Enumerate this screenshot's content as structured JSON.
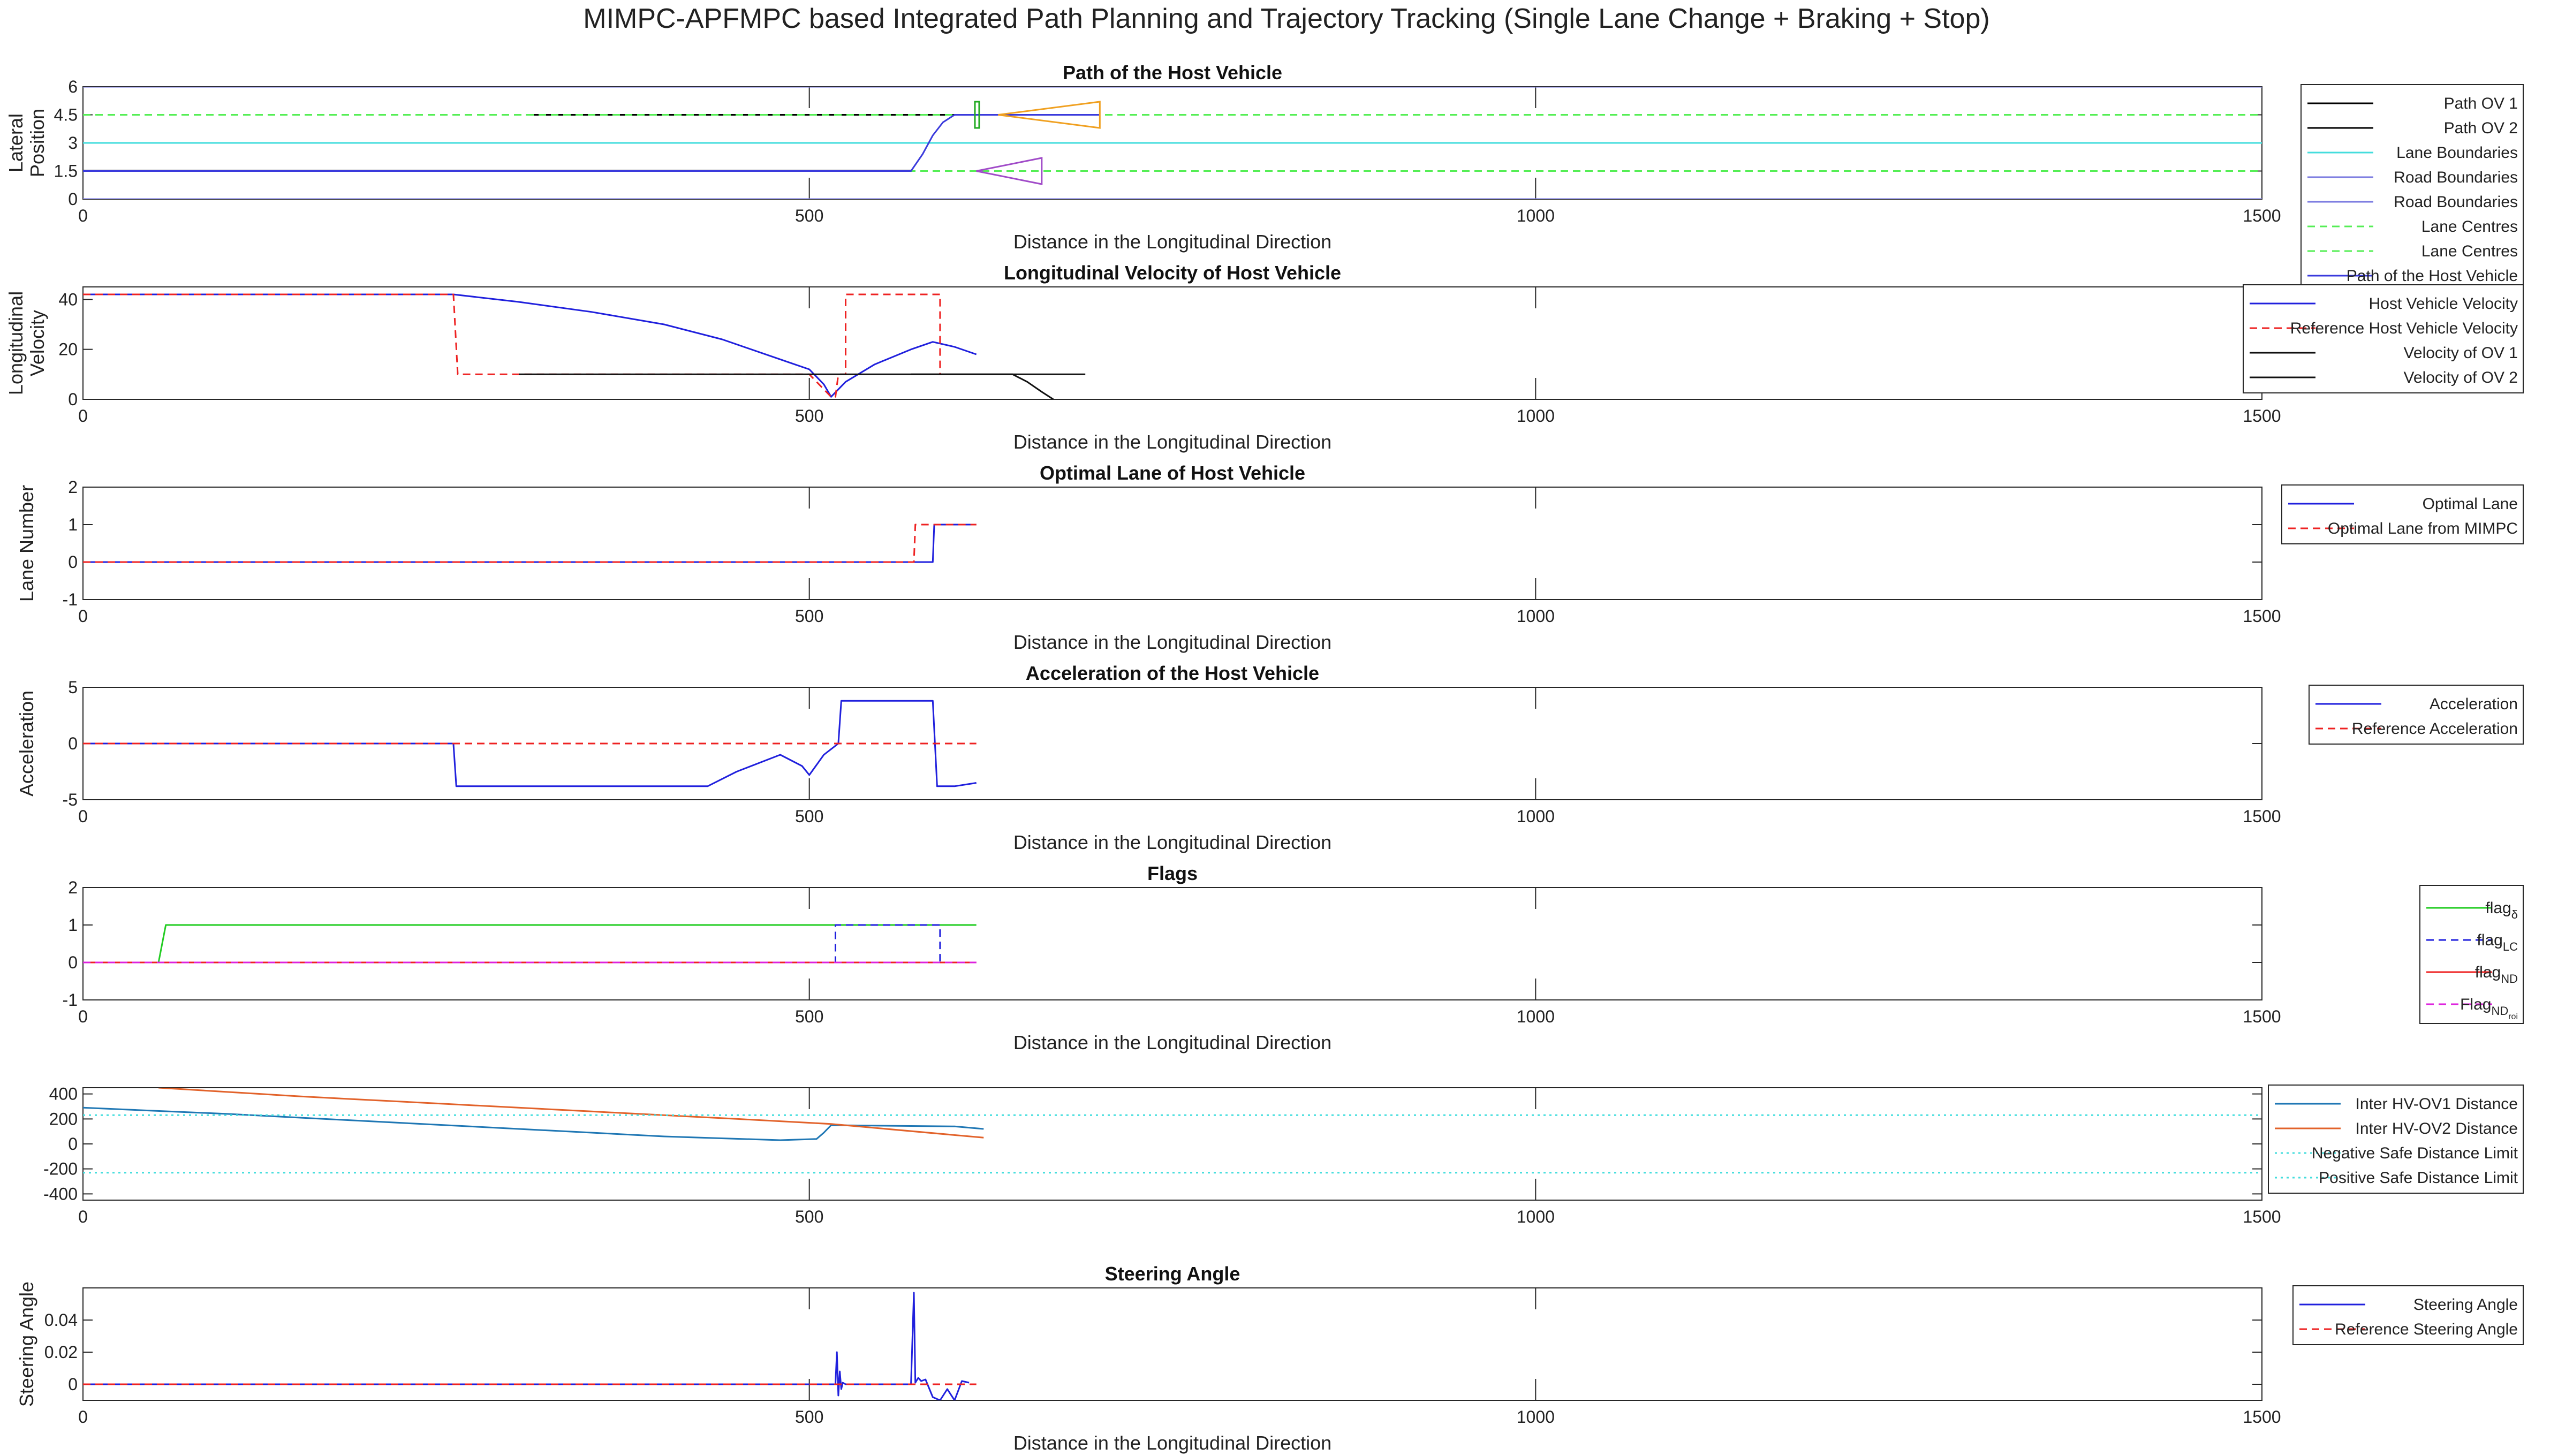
{
  "figure_title": "MIMPC-APFMPC based Integrated Path Planning and Trajectory Tracking (Single Lane Change + Braking + Stop)",
  "chart_data": [
    {
      "type": "line",
      "title": "Path of the Host Vehicle",
      "xlabel": "Distance in the Longitudinal Direction",
      "ylabel": [
        "Lateral",
        "Position"
      ],
      "xlim": [
        0,
        1500
      ],
      "ylim": [
        0,
        6
      ],
      "xticks": [
        "0",
        "500",
        "1000",
        "1500"
      ],
      "yticks": [
        "0",
        "1.5",
        "3",
        "4.5",
        "6"
      ],
      "legend_position": "right",
      "series": [
        {
          "name": "Path OV 1",
          "color": "#000000",
          "style": "solid",
          "x": [
            608,
            624
          ],
          "y": [
            4.5,
            4.5
          ]
        },
        {
          "name": "Path OV 2",
          "color": "#000000",
          "style": "solid",
          "x": [
            305,
            700
          ],
          "y": [
            4.5,
            4.5
          ]
        },
        {
          "name": "Lane Boundaries",
          "color": "#44dddd",
          "style": "solid",
          "x": [
            0,
            1500
          ],
          "y": [
            3,
            3
          ]
        },
        {
          "name": "Road Boundaries",
          "color": "#7a7ae0",
          "style": "solid",
          "x": [
            0,
            1500
          ],
          "y": [
            0,
            0
          ]
        },
        {
          "name": "Road Boundaries",
          "color": "#7a7ae0",
          "style": "solid",
          "x": [
            0,
            1500
          ],
          "y": [
            6,
            6
          ]
        },
        {
          "name": "Lane Centres",
          "color": "#55ee55",
          "style": "dashed",
          "x": [
            0,
            1500
          ],
          "y": [
            1.5,
            1.5
          ]
        },
        {
          "name": "Lane Centres",
          "color": "#55ee55",
          "style": "dashed",
          "x": [
            0,
            1500
          ],
          "y": [
            4.5,
            4.5
          ]
        },
        {
          "name": "Path of the Host Vehicle",
          "color": "#3a3adc",
          "style": "solid",
          "x": [
            0,
            570,
            578,
            585,
            592,
            600,
            700
          ],
          "y": [
            1.5,
            1.5,
            2.4,
            3.4,
            4.1,
            4.5,
            4.5
          ]
        }
      ],
      "other_lines": [
        {
          "color": "#222222",
          "x": [
            0,
            570
          ],
          "y": [
            1.52,
            1.52
          ]
        }
      ]
    },
    {
      "type": "line",
      "title": "Longitudinal Velocity of Host Vehicle",
      "xlabel": "Distance in the Longitudinal Direction",
      "ylabel": [
        "Longitudinal",
        "Velocity"
      ],
      "xlim": [
        0,
        1500
      ],
      "ylim": [
        0,
        45
      ],
      "xticks": [
        "0",
        "500",
        "1000",
        "1500"
      ],
      "yticks": [
        "0",
        "20",
        "40"
      ],
      "legend_position": "right",
      "series": [
        {
          "name": "Host Vehicle Velocity",
          "color": "#2020dd",
          "style": "solid",
          "x": [
            0,
            255,
            300,
            350,
            400,
            440,
            475,
            490,
            500,
            510,
            515,
            525,
            545,
            570,
            585,
            600,
            615
          ],
          "y": [
            42,
            42,
            39,
            35,
            30,
            24,
            17,
            14,
            12,
            6,
            1,
            7,
            14,
            20,
            23,
            21,
            18
          ]
        },
        {
          "name": "Reference Host Vehicle Velocity",
          "color": "#ee2222",
          "style": "dashed",
          "x": [
            0,
            255,
            258,
            300,
            500,
            510,
            515,
            518,
            520,
            525,
            525,
            590,
            590
          ],
          "y": [
            42,
            42,
            10,
            10,
            10,
            4,
            1,
            1,
            10,
            10,
            42,
            42,
            10
          ]
        },
        {
          "name": "Velocity of OV 1",
          "color": "#111111",
          "style": "solid",
          "x": [
            300,
            500,
            690
          ],
          "y": [
            10,
            10,
            10
          ]
        },
        {
          "name": "Velocity of OV 2",
          "color": "#111111",
          "style": "solid",
          "x": [
            570,
            640,
            650,
            660,
            668
          ],
          "y": [
            10,
            10,
            7,
            3,
            0
          ]
        }
      ]
    },
    {
      "type": "line",
      "title": "Optimal Lane of Host Vehicle",
      "xlabel": "Distance in the Longitudinal Direction",
      "ylabel": [
        "Lane Number"
      ],
      "xlim": [
        0,
        1500
      ],
      "ylim": [
        -1,
        2
      ],
      "xticks": [
        "0",
        "500",
        "1000",
        "1500"
      ],
      "yticks": [
        "-1",
        "0",
        "1",
        "2"
      ],
      "legend_position": "right",
      "series": [
        {
          "name": "Optimal Lane",
          "color": "#2020dd",
          "style": "solid",
          "x": [
            0,
            585,
            586,
            615
          ],
          "y": [
            0,
            0,
            1,
            1
          ]
        },
        {
          "name": "Optimal Lane from MIMPC",
          "color": "#ee2222",
          "style": "dashed",
          "x": [
            0,
            572,
            573,
            615
          ],
          "y": [
            0,
            0,
            1,
            1
          ]
        }
      ]
    },
    {
      "type": "line",
      "title": "Acceleration of the Host Vehicle",
      "xlabel": "Distance in the Longitudinal Direction",
      "ylabel": [
        "Acceleration"
      ],
      "xlim": [
        0,
        1500
      ],
      "ylim": [
        -5,
        5
      ],
      "xticks": [
        "0",
        "500",
        "1000",
        "1500"
      ],
      "yticks": [
        "-5",
        "0",
        "5"
      ],
      "legend_position": "right",
      "series": [
        {
          "name": "Acceleration",
          "color": "#2020dd",
          "style": "solid",
          "x": [
            0,
            255,
            257,
            430,
            450,
            480,
            495,
            500,
            510,
            520,
            522,
            585,
            588,
            600,
            615
          ],
          "y": [
            0,
            0,
            -3.8,
            -3.8,
            -2.5,
            -1.0,
            -2.0,
            -2.8,
            -1.0,
            0,
            3.8,
            3.8,
            -3.8,
            -3.8,
            -3.5
          ]
        },
        {
          "name": "Reference Acceleration",
          "color": "#ee2222",
          "style": "dashed",
          "x": [
            0,
            615
          ],
          "y": [
            0,
            0
          ]
        }
      ]
    },
    {
      "type": "line",
      "title": "Flags",
      "xlabel": "Distance in the Longitudinal Direction",
      "ylabel": [],
      "xlim": [
        0,
        1500
      ],
      "ylim": [
        -1,
        2
      ],
      "xticks": [
        "0",
        "500",
        "1000",
        "1500"
      ],
      "yticks": [
        "-1",
        "0",
        "1",
        "2"
      ],
      "legend_position": "right",
      "series": [
        {
          "name": "flag",
          "sub": "δ",
          "color": "#22cc22",
          "style": "solid",
          "x": [
            0,
            52,
            57,
            615
          ],
          "y": [
            0,
            0,
            1,
            1
          ]
        },
        {
          "name": "flag",
          "sub": "LC",
          "color": "#2020dd",
          "style": "dashed",
          "x": [
            0,
            518,
            518,
            590,
            590,
            615
          ],
          "y": [
            0,
            0,
            1,
            1,
            0,
            0
          ]
        },
        {
          "name": "flag",
          "sub": "ND",
          "color": "#ee2222",
          "style": "solid",
          "x": [
            0,
            615
          ],
          "y": [
            0,
            0
          ]
        },
        {
          "name": "Flag",
          "sub": "ND",
          "subsub": "roi",
          "color": "#dd22dd",
          "style": "dashed",
          "x": [
            0,
            615
          ],
          "y": [
            0,
            0
          ]
        }
      ]
    },
    {
      "type": "line",
      "title": "",
      "xlabel": "",
      "ylabel": [],
      "xlim": [
        0,
        1500
      ],
      "ylim": [
        -450,
        450
      ],
      "xticks": [
        "0",
        "500",
        "1000",
        "1500"
      ],
      "yticks": [
        "-400",
        "-200",
        "0",
        "200",
        "400"
      ],
      "legend_position": "right",
      "series": [
        {
          "name": "Inter HV-OV1 Distance",
          "color": "#1f77b4",
          "style": "solid",
          "x": [
            0,
            100,
            200,
            300,
            400,
            480,
            505,
            510,
            515,
            600,
            620
          ],
          "y": [
            290,
            240,
            180,
            120,
            60,
            30,
            40,
            90,
            150,
            140,
            120
          ]
        },
        {
          "name": "Inter HV-OV2 Distance",
          "color": "#e2622a",
          "style": "solid",
          "x": [
            52,
            150,
            250,
            350,
            450,
            515,
            620
          ],
          "y": [
            450,
            380,
            320,
            260,
            200,
            160,
            50
          ]
        },
        {
          "name": "Negative Safe Distance Limit",
          "color": "#44dddd",
          "style": "dotted",
          "x": [
            0,
            1500
          ],
          "y": [
            -230,
            -230
          ]
        },
        {
          "name": "Positive Safe Distance Limit",
          "color": "#44dddd",
          "style": "dotted",
          "x": [
            0,
            1500
          ],
          "y": [
            230,
            230
          ]
        }
      ]
    },
    {
      "type": "line",
      "title": "Steering Angle",
      "xlabel": "Distance in the Longitudinal Direction",
      "ylabel": [
        "Steering Angle"
      ],
      "xlim": [
        0,
        1500
      ],
      "ylim": [
        -0.01,
        0.06
      ],
      "xticks": [
        "0",
        "500",
        "1000",
        "1500"
      ],
      "yticks": [
        "0",
        "0.02",
        "0.04"
      ],
      "legend_position": "right",
      "series": [
        {
          "name": "Steering Angle",
          "color": "#2020dd",
          "style": "solid",
          "x": [
            0,
            518,
            519,
            520,
            521,
            522,
            523,
            525,
            570,
            572,
            573,
            575,
            577,
            580,
            585,
            590,
            595,
            600,
            605,
            610
          ],
          "y": [
            0,
            0,
            0.02,
            -0.007,
            0.008,
            -0.003,
            0.001,
            0,
            0,
            0.057,
            0.001,
            0.004,
            0.002,
            0.003,
            -0.008,
            -0.01,
            -0.003,
            -0.01,
            0.002,
            0.001
          ]
        },
        {
          "name": "Reference Steering Angle",
          "color": "#ee2222",
          "style": "dashed",
          "x": [
            0,
            615
          ],
          "y": [
            0,
            0
          ]
        }
      ]
    }
  ]
}
